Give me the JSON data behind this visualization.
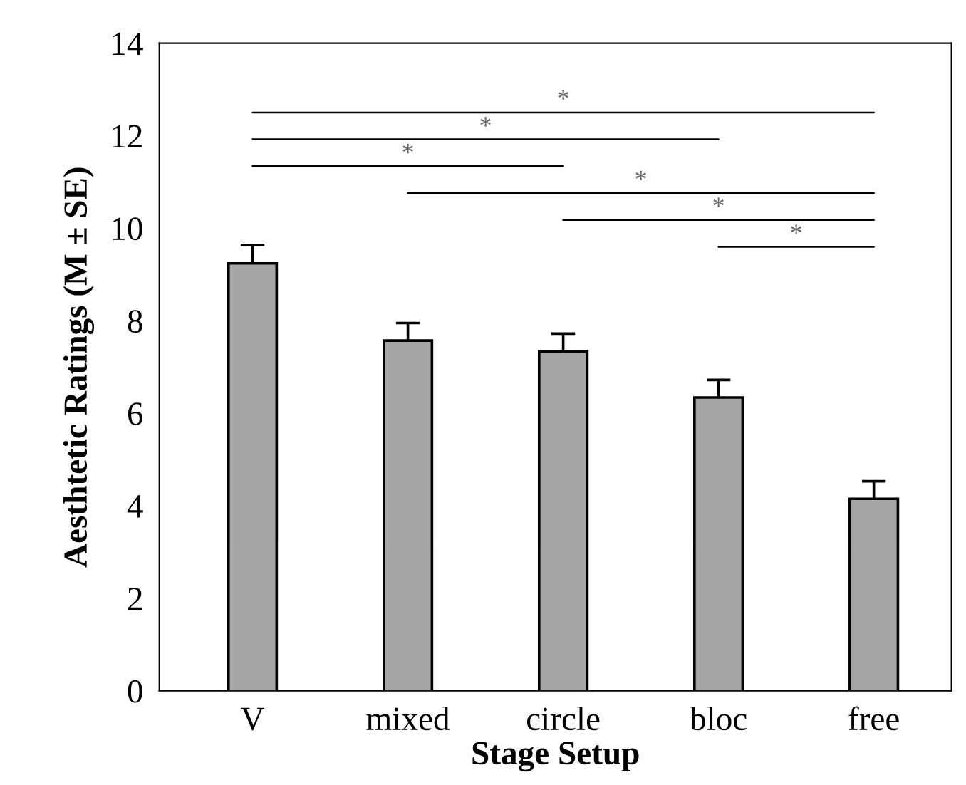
{
  "chart_data": {
    "type": "bar",
    "xlabel": "Stage Setup",
    "ylabel": "Aesthtetic Ratings (M ± SE)",
    "categories": [
      "V",
      "mixed",
      "circle",
      "bloc",
      "free"
    ],
    "values": [
      9.24,
      7.57,
      7.34,
      6.34,
      4.15
    ],
    "errors": [
      0.4,
      0.38,
      0.38,
      0.38,
      0.38
    ],
    "color": "#a6a6a6",
    "ylim": [
      0,
      14
    ],
    "yticks": [
      0,
      2,
      4,
      6,
      8,
      10,
      12,
      14
    ],
    "grid": false,
    "annotations": [
      "*",
      "*",
      "*",
      "*",
      "*",
      "*"
    ]
  }
}
